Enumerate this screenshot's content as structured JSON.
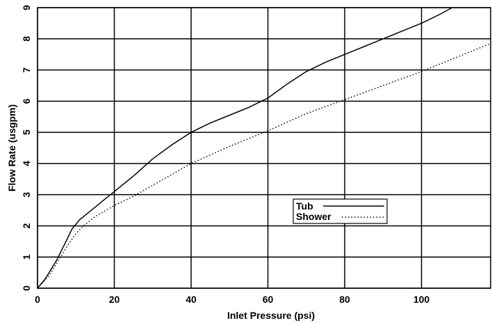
{
  "chart_data": {
    "type": "line",
    "title": "",
    "xlabel": "Inlet Pressure (psi)",
    "ylabel": "Flow Rate (usgpm)",
    "xlim": [
      0,
      118
    ],
    "ylim": [
      0,
      9
    ],
    "x_ticks": [
      "0",
      "20",
      "40",
      "60",
      "80",
      "100"
    ],
    "y_ticks": [
      "0",
      "1",
      "2",
      "3",
      "4",
      "5",
      "6",
      "7",
      "8",
      "9"
    ],
    "grid": true,
    "legend_position": "center-right",
    "series": [
      {
        "name": "Tub",
        "style": "solid",
        "color": "#000000",
        "points": [
          [
            0,
            0
          ],
          [
            2,
            0.3
          ],
          [
            5,
            0.9
          ],
          [
            7,
            1.4
          ],
          [
            9,
            1.9
          ],
          [
            11,
            2.2
          ],
          [
            14,
            2.5
          ],
          [
            17,
            2.8
          ],
          [
            20,
            3.1
          ],
          [
            25,
            3.6
          ],
          [
            30,
            4.15
          ],
          [
            35,
            4.6
          ],
          [
            40,
            5.0
          ],
          [
            45,
            5.3
          ],
          [
            50,
            5.55
          ],
          [
            55,
            5.8
          ],
          [
            60,
            6.1
          ],
          [
            65,
            6.55
          ],
          [
            70,
            6.95
          ],
          [
            75,
            7.25
          ],
          [
            80,
            7.5
          ],
          [
            85,
            7.75
          ],
          [
            90,
            8.0
          ],
          [
            95,
            8.25
          ],
          [
            100,
            8.5
          ],
          [
            105,
            8.8
          ],
          [
            108,
            9.0
          ]
        ]
      },
      {
        "name": "Shower",
        "style": "dotted",
        "color": "#000000",
        "points": [
          [
            0,
            0
          ],
          [
            3,
            0.4
          ],
          [
            6,
            1.0
          ],
          [
            8,
            1.4
          ],
          [
            10,
            1.75
          ],
          [
            12,
            2.0
          ],
          [
            15,
            2.3
          ],
          [
            20,
            2.65
          ],
          [
            25,
            2.95
          ],
          [
            30,
            3.3
          ],
          [
            35,
            3.65
          ],
          [
            40,
            4.0
          ],
          [
            50,
            4.55
          ],
          [
            60,
            5.05
          ],
          [
            70,
            5.6
          ],
          [
            80,
            6.05
          ],
          [
            90,
            6.5
          ],
          [
            100,
            6.95
          ],
          [
            110,
            7.45
          ],
          [
            118,
            7.85
          ]
        ]
      }
    ]
  }
}
